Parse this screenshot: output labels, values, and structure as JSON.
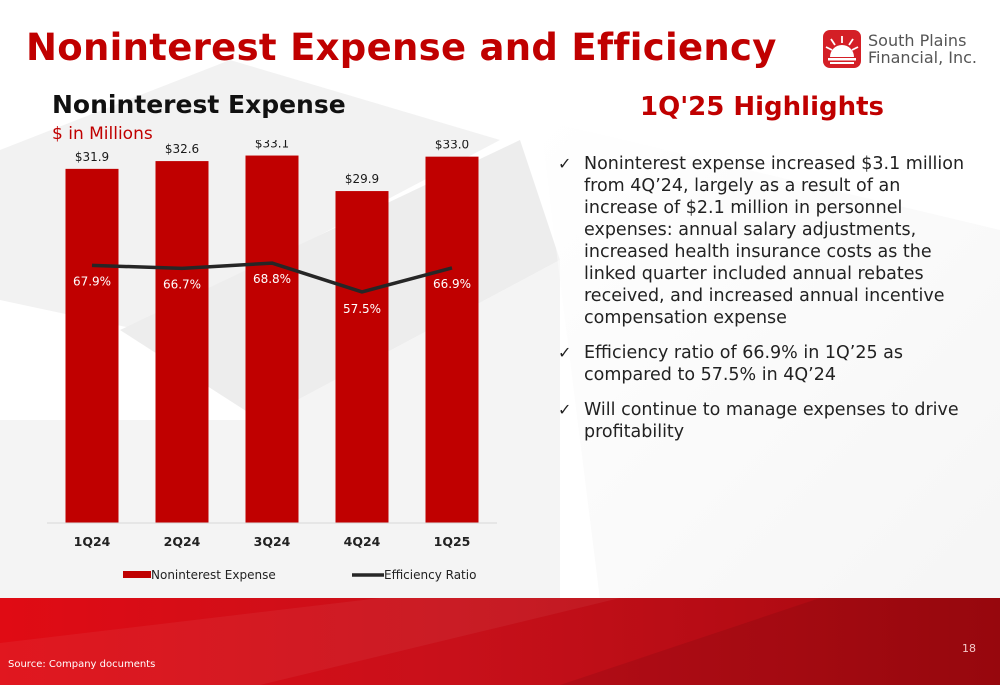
{
  "slide": {
    "title": "Noninterest Expense and Efficiency",
    "logo_line1": "South Plains",
    "logo_line2": "Financial, Inc.",
    "source": "Source: Company documents",
    "page_number": "18"
  },
  "highlights": {
    "title": "1Q'25 Highlights",
    "check_glyph": "✓",
    "bullets": [
      "Noninterest expense increased $3.1 million from 4Q’24, largely as a result of an increase of $2.1 million in personnel expenses:  annual salary adjustments, increased health insurance costs as the linked quarter included annual rebates received, and increased annual incentive compensation expense",
      "Efficiency ratio of 66.9% in 1Q’25 as compared to 57.5% in 4Q’24",
      "Will continue to manage expenses to drive profitability"
    ]
  },
  "chart_data": {
    "type": "bar",
    "title": "Noninterest Expense",
    "subtitle": "$ in Millions",
    "categories": [
      "1Q24",
      "2Q24",
      "3Q24",
      "4Q24",
      "1Q25"
    ],
    "series": [
      {
        "name": "Noninterest Expense",
        "type": "bar",
        "axis": "left",
        "values": [
          31.9,
          32.6,
          33.1,
          29.9,
          33.0
        ],
        "labels": [
          "$31.9",
          "$32.6",
          "$33.1",
          "$29.9",
          "$33.0"
        ]
      },
      {
        "name": "Efficiency Ratio",
        "type": "line",
        "axis": "right",
        "values": [
          67.9,
          66.7,
          68.8,
          57.5,
          66.9
        ],
        "labels": [
          "67.9%",
          "66.7%",
          "68.8%",
          "57.5%",
          "66.9%"
        ]
      }
    ],
    "ylim": [
      0,
      34.5
    ],
    "y2lim": [
      -33,
      117
    ],
    "colors": {
      "bar": "#c00000",
      "line": "#262626",
      "bar_label": "#1a1a1a",
      "line_label": "#ffffff"
    },
    "legend_position": "bottom",
    "grid": false
  }
}
